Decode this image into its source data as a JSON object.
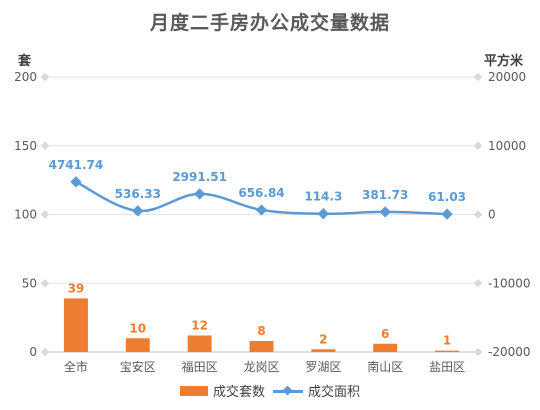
{
  "chart_data": {
    "type": "bar+line",
    "title": "月度二手房办公成交量数据",
    "categories": [
      "全市",
      "宝安区",
      "福田区",
      "龙岗区",
      "罗湖区",
      "南山区",
      "盐田区"
    ],
    "y_left": {
      "label": "套",
      "range": [
        0,
        200
      ],
      "ticks": [
        "0",
        "50",
        "100",
        "150",
        "200"
      ]
    },
    "y_right": {
      "label": "平方米",
      "range": [
        -20000,
        20000
      ],
      "ticks": [
        "-20000",
        "-10000",
        "0",
        "10000",
        "20000"
      ]
    },
    "series": [
      {
        "name": "成交套数",
        "type": "bar",
        "axis": "left",
        "color": "#ED7D31",
        "values": [
          39,
          10,
          12,
          8,
          2,
          6,
          1
        ],
        "labels": [
          "39",
          "10",
          "12",
          "8",
          "2",
          "6",
          "1"
        ]
      },
      {
        "name": "成交面积",
        "type": "line",
        "axis": "right",
        "color": "#5B9BD5",
        "values": [
          4741.74,
          536.33,
          2991.51,
          656.84,
          114.3,
          381.73,
          61.03
        ],
        "labels": [
          "4741.74",
          "536.33",
          "2991.51",
          "656.84",
          "114.3",
          "381.73",
          "61.03"
        ]
      }
    ],
    "grid": true,
    "legend": "bottom"
  }
}
